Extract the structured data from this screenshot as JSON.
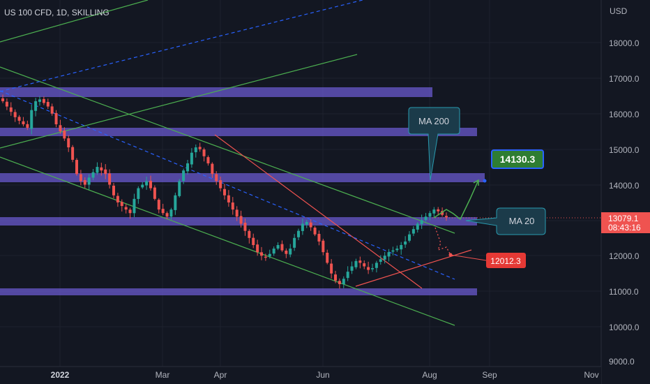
{
  "chart_title": "US 100 CFD, 1D, SKILLING",
  "currency_label": "USD",
  "colors": {
    "background": "#131722",
    "up_candle": "#26a69a",
    "down_candle": "#ef5350",
    "zone": "#6a5acd",
    "trend_green": "#4caf50",
    "trend_red": "#ef5350",
    "dashed_blue": "#2962ff",
    "callout_fill": "#1b3b4a",
    "callout_stroke": "#2a9bb0",
    "target_green": "#2e7d32",
    "target_red": "#e53935",
    "price_badge": "#ef5350"
  },
  "callouts": {
    "ma200": "MA 200",
    "ma20": "MA 20"
  },
  "targets": {
    "upside": "14130.3",
    "downside": "12012.3"
  },
  "current_price": {
    "price": "13079.1",
    "countdown": "08:43:16"
  },
  "chart_data": {
    "type": "candlestick",
    "title": "US 100 CFD, 1D, SKILLING",
    "ylabel": "USD",
    "ylim": [
      9000,
      19000
    ],
    "y_ticks": [
      "18000.0",
      "17000.0",
      "16000.0",
      "15000.0",
      "14000.0",
      "13000.0",
      "12000.0",
      "11000.0",
      "10000.0",
      "9000.0"
    ],
    "x_ticks": [
      "2022",
      "Mar",
      "Apr",
      "Jun",
      "Aug",
      "Sep",
      "Nov"
    ],
    "last_price": 13079.1,
    "upside_target": 14130.3,
    "downside_target": 12012.3,
    "resistance_zones": [
      [
        16490,
        16760
      ],
      [
        15380,
        15600
      ],
      [
        14100,
        14350
      ],
      [
        12830,
        13050
      ],
      [
        10930,
        11100
      ]
    ],
    "candle_path_closes": [
      16350,
      16200,
      16050,
      15900,
      15800,
      15700,
      15600,
      16100,
      16350,
      16400,
      16300,
      16200,
      16000,
      15700,
      15500,
      15300,
      15050,
      14700,
      14300,
      14100,
      14000,
      14200,
      14350,
      14500,
      14400,
      14300,
      14000,
      13700,
      13500,
      13400,
      13300,
      13200,
      13600,
      13900,
      14000,
      14100,
      13900,
      13600,
      13300,
      13200,
      13100,
      13300,
      13700,
      14100,
      14400,
      14600,
      14900,
      15050,
      15000,
      14800,
      14600,
      14300,
      14100,
      13900,
      13700,
      13500,
      13300,
      13100,
      12900,
      12700,
      12500,
      12300,
      12100,
      12000,
      11950,
      12050,
      12200,
      12300,
      12150,
      12050,
      12200,
      12500,
      12700,
      12900,
      12950,
      12800,
      12600,
      12400,
      12100,
      11800,
      11500,
      11300,
      11200,
      11350,
      11550,
      11700,
      11850,
      11800,
      11700,
      11600,
      11650,
      11800,
      11900,
      12000,
      12100,
      12150,
      12200,
      12300,
      12400,
      12600,
      12750,
      12900,
      13000,
      13100,
      13200,
      13300,
      13250,
      13150,
      13079
    ]
  }
}
